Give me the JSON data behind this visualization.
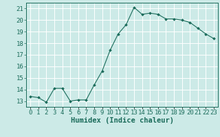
{
  "xlabel": "Humidex (Indice chaleur)",
  "x": [
    0,
    1,
    2,
    3,
    4,
    5,
    6,
    7,
    8,
    9,
    10,
    11,
    12,
    13,
    14,
    15,
    16,
    17,
    18,
    19,
    20,
    21,
    22,
    23
  ],
  "y": [
    13.4,
    13.3,
    12.9,
    14.1,
    14.1,
    13.0,
    13.1,
    13.1,
    14.4,
    15.6,
    17.4,
    18.8,
    19.6,
    21.1,
    20.5,
    20.6,
    20.5,
    20.1,
    20.1,
    20.0,
    19.8,
    19.3,
    18.8,
    18.4
  ],
  "line_color": "#1a6b5a",
  "marker": "D",
  "marker_size": 2.0,
  "bg_color": "#cceae7",
  "grid_color": "#ffffff",
  "tick_color": "#1a6b5a",
  "label_color": "#1a6b5a",
  "ylim": [
    12.5,
    21.5
  ],
  "yticks": [
    13,
    14,
    15,
    16,
    17,
    18,
    19,
    20,
    21
  ],
  "xlim": [
    -0.5,
    23.5
  ],
  "xticks": [
    0,
    1,
    2,
    3,
    4,
    5,
    6,
    7,
    8,
    9,
    10,
    11,
    12,
    13,
    14,
    15,
    16,
    17,
    18,
    19,
    20,
    21,
    22,
    23
  ],
  "xtick_labels": [
    "0",
    "1",
    "2",
    "3",
    "4",
    "5",
    "6",
    "7",
    "8",
    "9",
    "10",
    "11",
    "12",
    "13",
    "14",
    "15",
    "16",
    "17",
    "18",
    "19",
    "20",
    "21",
    "22",
    "23"
  ],
  "font_size": 6.5,
  "xlabel_font_size": 7.5
}
